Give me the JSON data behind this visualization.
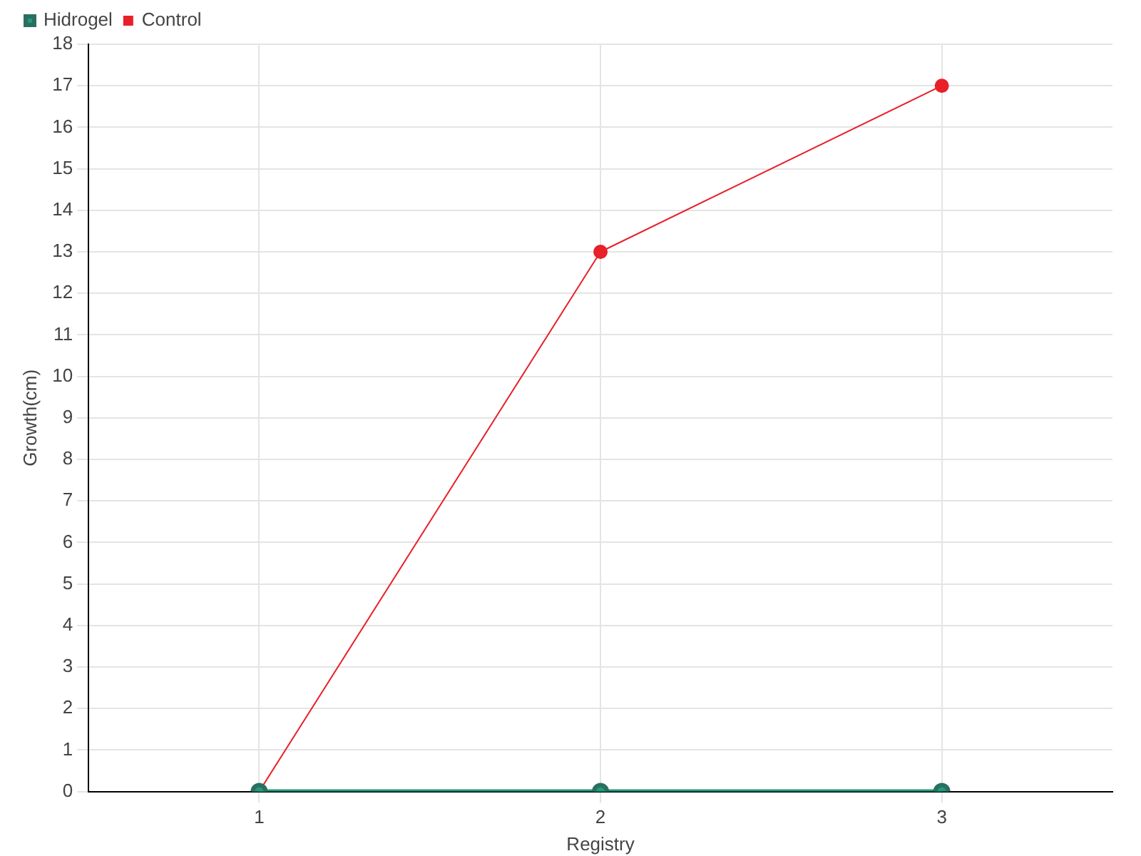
{
  "chart_data": {
    "type": "line",
    "xlabel": "Registry",
    "ylabel": "Growth(cm)",
    "categories": [
      "1",
      "2",
      "3"
    ],
    "series": [
      {
        "name": "Hidrogel",
        "color": "#1f9a7c",
        "values": [
          0,
          0,
          0
        ]
      },
      {
        "name": "Control",
        "color": "#e8202a",
        "values": [
          0,
          13,
          17
        ]
      }
    ],
    "ylim": [
      0,
      18
    ],
    "yticks": [
      0,
      1,
      2,
      3,
      4,
      5,
      6,
      7,
      8,
      9,
      10,
      11,
      12,
      13,
      14,
      15,
      16,
      17,
      18
    ],
    "grid": true,
    "legend": "top left",
    "marker": "circle",
    "line_style": "solid"
  }
}
